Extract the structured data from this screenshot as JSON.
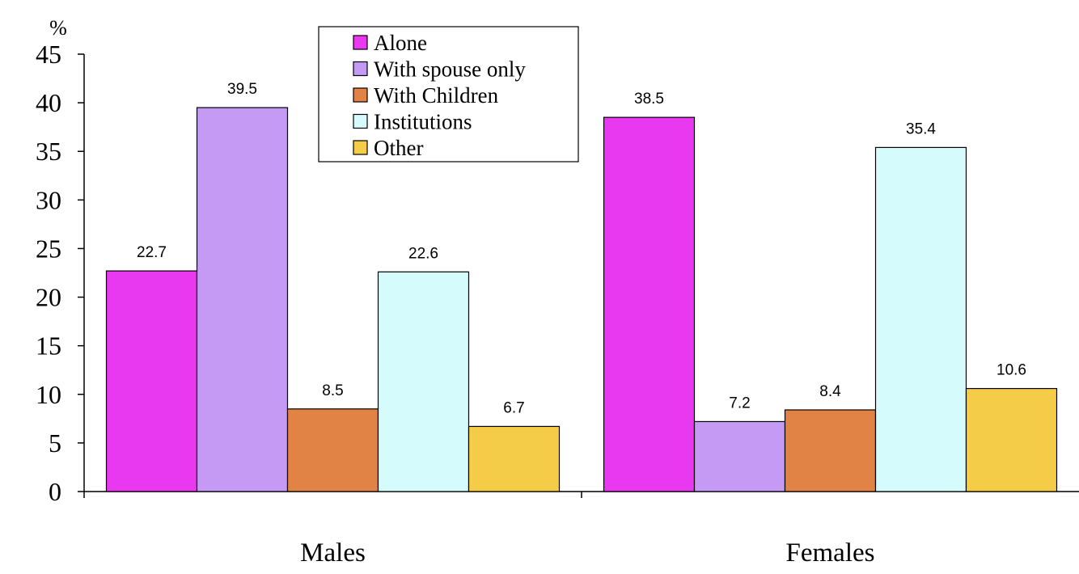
{
  "chart_data": {
    "type": "bar",
    "title": "",
    "xlabel": "",
    "ylabel": "%",
    "ylim": [
      0,
      45
    ],
    "yticks": [
      0,
      5,
      10,
      15,
      20,
      25,
      30,
      35,
      40,
      45
    ],
    "grid": false,
    "legend_position": "top-center",
    "categories": [
      "Males",
      "Females"
    ],
    "series": [
      {
        "name": "Alone",
        "color": "#E838F0",
        "values": [
          22.7,
          38.5
        ],
        "labels": [
          "22.7",
          "38.5"
        ]
      },
      {
        "name": "With spouse only",
        "color": "#C49AF5",
        "values": [
          39.5,
          7.2
        ],
        "labels": [
          "39.5",
          "7.2"
        ]
      },
      {
        "name": "With Children",
        "color": "#E08345",
        "values": [
          8.5,
          8.4
        ],
        "labels": [
          "8.5",
          "8.4"
        ]
      },
      {
        "name": "Institutions",
        "color": "#D6FBFC",
        "values": [
          22.6,
          35.4
        ],
        "labels": [
          "22.6",
          "35.4"
        ]
      },
      {
        "name": "Other",
        "color": "#F5CC48",
        "values": [
          6.7,
          10.6
        ],
        "labels": [
          "6.7",
          "10.6"
        ]
      }
    ]
  }
}
